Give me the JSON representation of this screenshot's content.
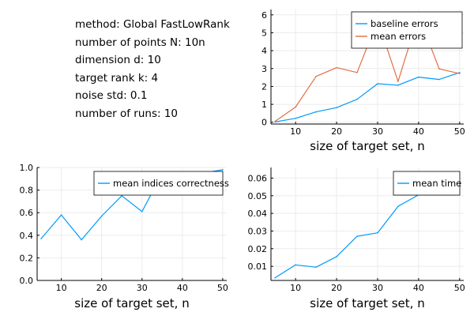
{
  "info": {
    "lines": [
      "method: Global FastLowRank",
      "number of points N: 10n",
      "dimension d: 10",
      "target rank k: 4",
      "noise std: 0.1",
      "number of runs: 10"
    ]
  },
  "colors": {
    "blue": "#009AFA",
    "orange": "#E26F46",
    "grid": "#ebebeb",
    "axis": "#000000"
  },
  "chart_data": [
    {
      "type": "line",
      "title": "",
      "xlabel": "size of target set, n",
      "ylabel": "",
      "xlim": [
        4,
        51
      ],
      "ylim": [
        -0.1,
        6.3
      ],
      "xticks": [
        10,
        20,
        30,
        40,
        50
      ],
      "yticks": [
        0,
        1,
        2,
        3,
        4,
        5,
        6
      ],
      "ytick_labels": [
        "0",
        "1",
        "2",
        "3",
        "4",
        "5",
        "6"
      ],
      "grid": true,
      "legend": "top-right",
      "x": [
        5,
        10,
        15,
        20,
        25,
        30,
        35,
        40,
        45,
        50
      ],
      "series": [
        {
          "name": "baseline errors",
          "color": "#009AFA",
          "values": [
            0.02,
            0.22,
            0.58,
            0.82,
            1.28,
            2.15,
            2.07,
            2.52,
            2.39,
            2.78
          ]
        },
        {
          "name": "mean errors",
          "color": "#E26F46",
          "values": [
            0.05,
            0.85,
            2.56,
            3.05,
            2.78,
            5.7,
            2.28,
            6.0,
            2.98,
            2.72
          ]
        }
      ]
    },
    {
      "type": "line",
      "title": "",
      "xlabel": "size of target set, n",
      "ylabel": "",
      "xlim": [
        4,
        51
      ],
      "ylim": [
        0,
        1
      ],
      "xticks": [
        10,
        20,
        30,
        40,
        50
      ],
      "yticks": [
        0,
        0.2,
        0.4,
        0.6,
        0.8,
        1.0
      ],
      "ytick_labels": [
        "0.0",
        "0.2",
        "0.4",
        "0.6",
        "0.8",
        "1.0"
      ],
      "grid": true,
      "legend": "top-right",
      "x": [
        5,
        10,
        15,
        20,
        25,
        30,
        35,
        40,
        45,
        50
      ],
      "series": [
        {
          "name": "mean indices correctness",
          "color": "#009AFA",
          "values": [
            0.37,
            0.58,
            0.36,
            0.57,
            0.75,
            0.61,
            0.95,
            0.82,
            0.95,
            0.98
          ]
        }
      ]
    },
    {
      "type": "line",
      "title": "",
      "xlabel": "size of target set, n",
      "ylabel": "",
      "xlim": [
        4,
        51
      ],
      "ylim": [
        0.002,
        0.066
      ],
      "xticks": [
        10,
        20,
        30,
        40,
        50
      ],
      "yticks": [
        0.01,
        0.02,
        0.03,
        0.04,
        0.05,
        0.06
      ],
      "ytick_labels": [
        "0.01",
        "0.02",
        "0.03",
        "0.04",
        "0.05",
        "0.06"
      ],
      "grid": true,
      "legend": "top-right",
      "x": [
        5,
        10,
        15,
        20,
        25,
        30,
        35,
        40,
        45,
        50
      ],
      "series": [
        {
          "name": "mean time",
          "color": "#009AFA",
          "values": [
            0.0035,
            0.0108,
            0.0095,
            0.0155,
            0.027,
            0.029,
            0.044,
            0.0505,
            0.057,
            0.062
          ]
        }
      ]
    }
  ]
}
